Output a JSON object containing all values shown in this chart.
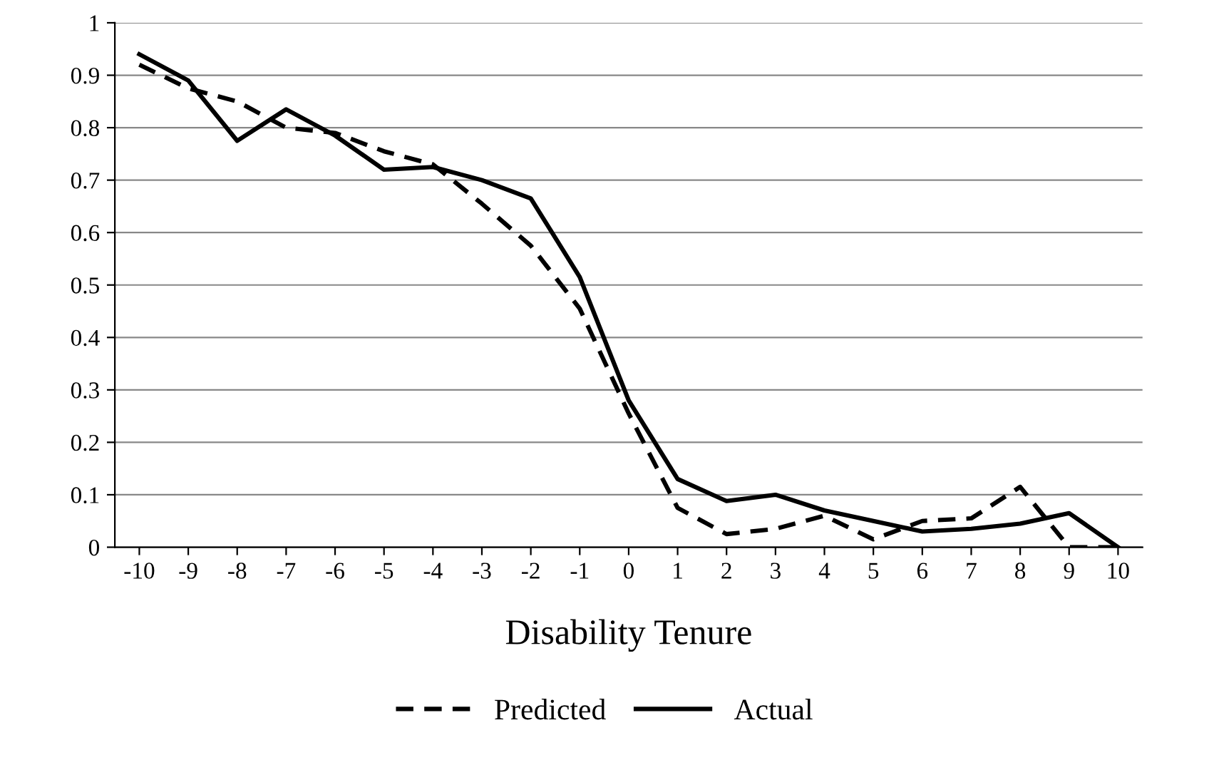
{
  "chart_data": {
    "type": "line",
    "xlabel": "Disability Tenure",
    "categories": [
      "-10",
      "-9",
      "-8",
      "-7",
      "-6",
      "-5",
      "-4",
      "-3",
      "-2",
      "-1",
      "0",
      "1",
      "2",
      "3",
      "4",
      "5",
      "6",
      "7",
      "8",
      "9",
      "10"
    ],
    "series": [
      {
        "name": "Predicted",
        "color": "#000000",
        "line_style": "dashed",
        "values": [
          0.92,
          0.875,
          0.85,
          0.8,
          0.79,
          0.755,
          0.73,
          0.655,
          0.575,
          0.455,
          0.255,
          0.075,
          0.025,
          0.035,
          0.06,
          0.015,
          0.05,
          0.055,
          0.115,
          0.0,
          0.0
        ]
      },
      {
        "name": "Actual",
        "color": "#000000",
        "line_style": "solid",
        "values": [
          0.94,
          0.89,
          0.775,
          0.835,
          0.785,
          0.72,
          0.725,
          0.7,
          0.665,
          0.515,
          0.28,
          0.13,
          0.088,
          0.1,
          0.07,
          0.05,
          0.03,
          0.035,
          0.045,
          0.065,
          0.0
        ]
      }
    ],
    "ylim": [
      0,
      1
    ],
    "yticks": [
      0,
      0.1,
      0.2,
      0.3,
      0.4,
      0.5,
      0.6,
      0.7,
      0.8,
      0.9,
      1
    ],
    "grid": "y",
    "legend": "bottom",
    "marker": "none"
  }
}
